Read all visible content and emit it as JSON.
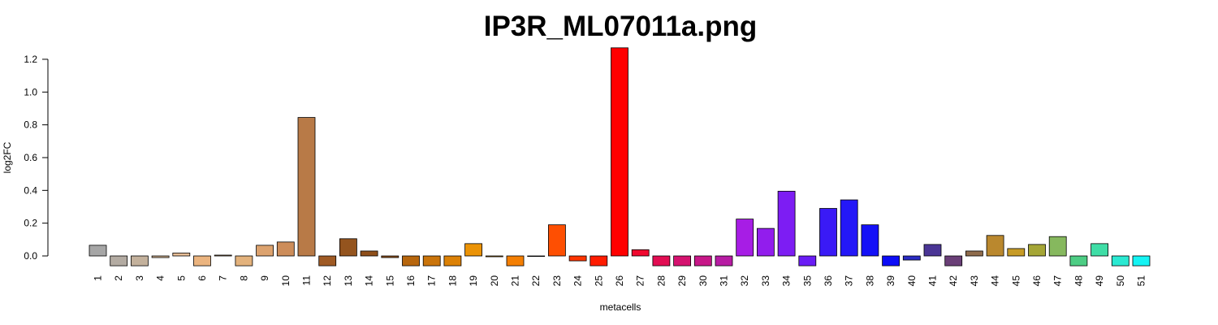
{
  "chart_data": {
    "type": "bar",
    "title": "IP3R_ML07011a.png",
    "xlabel": "metacells",
    "ylabel": "log2FC",
    "ylim": [
      -0.06,
      1.27
    ],
    "yticks": [
      "0.0",
      "0.2",
      "0.4",
      "0.6",
      "0.8",
      "1.0",
      "1.2"
    ],
    "categories": [
      "1",
      "2",
      "3",
      "4",
      "5",
      "6",
      "7",
      "8",
      "9",
      "10",
      "11",
      "12",
      "13",
      "14",
      "15",
      "16",
      "17",
      "18",
      "19",
      "20",
      "21",
      "22",
      "23",
      "24",
      "25",
      "26",
      "27",
      "28",
      "29",
      "30",
      "31",
      "32",
      "33",
      "34",
      "35",
      "36",
      "37",
      "38",
      "39",
      "40",
      "41",
      "42",
      "43",
      "44",
      "45",
      "46",
      "47",
      "48",
      "49",
      "50",
      "51"
    ],
    "values": [
      0.065,
      -0.06,
      -0.06,
      -0.01,
      0.018,
      -0.06,
      0.005,
      -0.06,
      0.065,
      0.085,
      0.845,
      -0.06,
      0.105,
      0.03,
      -0.01,
      -0.06,
      -0.06,
      -0.06,
      0.075,
      -0.005,
      -0.06,
      0.0,
      0.19,
      -0.03,
      -0.06,
      1.27,
      0.038,
      -0.06,
      -0.06,
      -0.06,
      -0.06,
      0.225,
      0.168,
      0.395,
      -0.06,
      0.29,
      0.342,
      0.19,
      -0.06,
      -0.025,
      0.07,
      -0.06,
      0.03,
      0.125,
      0.045,
      0.07,
      0.118,
      -0.06,
      0.075,
      -0.06,
      -0.06
    ],
    "colors": [
      "#A6A6A6",
      "#B3ABA2",
      "#C3B19C",
      "#D6B58F",
      "#E8BE97",
      "#EBB47F",
      "#D8A06A",
      "#E3B27C",
      "#DCA26E",
      "#CD8D5A",
      "#B87A47",
      "#9F5A24",
      "#94541E",
      "#8F4F1A",
      "#96531A",
      "#B7660D",
      "#CA740B",
      "#DC8106",
      "#EB9306",
      "#EE9A03",
      "#F47F03",
      "#FA6C02",
      "#FE4F02",
      "#FF3501",
      "#FF1C00",
      "#FF0000",
      "#F0082F",
      "#E20D53",
      "#D5126F",
      "#C71788",
      "#B71CA3",
      "#A71DE5",
      "#921DED",
      "#7D1DF3",
      "#6A1CF5",
      "#3A1AF6",
      "#2418F7",
      "#1411F7",
      "#0C0CF7",
      "#2A2BC4",
      "#4A3595",
      "#6A3F77",
      "#8F6C4C",
      "#BA882E",
      "#C79B26",
      "#A5A636",
      "#86B85E",
      "#4DCD84",
      "#3FDDA6",
      "#2AE9D2",
      "#14F4F4"
    ]
  }
}
